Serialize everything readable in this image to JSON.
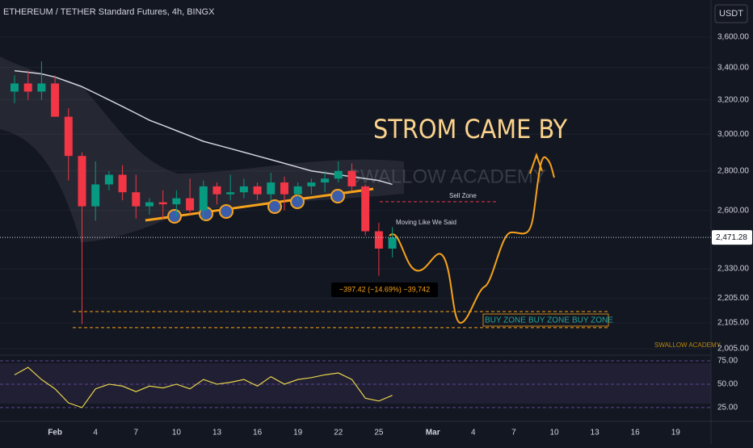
{
  "header": {
    "title": "ETHEREUM / TETHER Standard Futures, 4h, BINGX",
    "currency_button": "USDT"
  },
  "chart_data": {
    "type": "candlestick",
    "log_scale": true,
    "categories": [
      null,
      null,
      null,
      "Feb",
      null,
      null,
      "4",
      null,
      null,
      "7",
      null,
      null,
      "10",
      null,
      null,
      "13",
      null,
      null,
      "16",
      null,
      null,
      "19",
      null,
      null,
      "22",
      null,
      null,
      "25",
      null,
      null,
      null,
      "Mar",
      null,
      null,
      "4",
      null,
      null,
      "7",
      null,
      null,
      "10",
      null,
      null,
      "13",
      null,
      null,
      "16",
      null,
      null,
      "19",
      null,
      null
    ],
    "open": [
      3250,
      3300,
      3250,
      3300,
      3100,
      2880,
      2620,
      2730,
      2780,
      2690,
      2620,
      2640,
      2630,
      2660,
      2600,
      2720,
      2680,
      2690,
      2720,
      2680,
      2740,
      2680,
      2720,
      2740,
      2760,
      2800,
      2720,
      2500,
      2420,
      null,
      null,
      null,
      null,
      null,
      null,
      null,
      null,
      null,
      null,
      null,
      null,
      null,
      null,
      null,
      null,
      null,
      null,
      null,
      null,
      null,
      null,
      null
    ],
    "high": [
      3350,
      3380,
      3440,
      3350,
      3150,
      2900,
      2850,
      2800,
      2830,
      2780,
      2660,
      2700,
      2700,
      2760,
      2750,
      2740,
      2780,
      2760,
      2740,
      2790,
      2770,
      2740,
      2760,
      2800,
      2850,
      2840,
      2730,
      2540,
      2520,
      null,
      null,
      null,
      null,
      null,
      null,
      null,
      null,
      null,
      null,
      null,
      null,
      null,
      null,
      null,
      null,
      null,
      null,
      null,
      null,
      null,
      null,
      null
    ],
    "low": [
      3180,
      3200,
      3200,
      3100,
      2750,
      2100,
      2550,
      2700,
      2650,
      2560,
      2580,
      2560,
      2570,
      2580,
      2550,
      2630,
      2650,
      2660,
      2650,
      2650,
      2600,
      2640,
      2680,
      2690,
      2740,
      2700,
      2480,
      2300,
      2380,
      null,
      null,
      null,
      null,
      null,
      null,
      null,
      null,
      null,
      null,
      null,
      null,
      null,
      null,
      null,
      null,
      null,
      null,
      null,
      null,
      null,
      null,
      null
    ],
    "close": [
      3300,
      3250,
      3300,
      3100,
      2880,
      2620,
      2730,
      2780,
      2690,
      2620,
      2640,
      2630,
      2660,
      2600,
      2720,
      2680,
      2690,
      2720,
      2680,
      2740,
      2680,
      2720,
      2740,
      2760,
      2800,
      2720,
      2500,
      2420,
      2471.28,
      null,
      null,
      null,
      null,
      null,
      null,
      null,
      null,
      null,
      null,
      null,
      null,
      null,
      null,
      null,
      null,
      null,
      null,
      null,
      null,
      null,
      null,
      null
    ],
    "up_color": "#089981",
    "down_color": "#f23645",
    "ylim": [
      1981,
      3860
    ],
    "yticks": [
      {
        "value": 2005,
        "label": "2,005.00"
      },
      {
        "value": 2105,
        "label": "2,105.00"
      },
      {
        "value": 2205,
        "label": "2,205.00"
      },
      {
        "value": 2330,
        "label": "2,330.00"
      },
      {
        "value": 2600,
        "label": "2,600.00"
      },
      {
        "value": 2800,
        "label": "2,800.00"
      },
      {
        "value": 3000,
        "label": "3,000.00"
      },
      {
        "value": 3200,
        "label": "3,200.00"
      },
      {
        "value": 3400,
        "label": "3,400.00"
      },
      {
        "value": 3600,
        "label": "3,600.00"
      }
    ],
    "last_price": {
      "value": 2471.28,
      "label": "2,471.28"
    },
    "ma": {
      "color": "#d1d4dc",
      "values": [
        3380,
        3370,
        3360,
        3340,
        3310,
        3280,
        3240,
        3200,
        3160,
        3120,
        3080,
        3050,
        3020,
        2990,
        2960,
        2940,
        2920,
        2900,
        2880,
        2860,
        2840,
        2820,
        2800,
        2790,
        2780,
        2770,
        2760,
        2750,
        2730
      ]
    },
    "levels": {
      "sell_zone": 2643,
      "buy_zone_top": 2150,
      "buy_zone_bottom": 2086
    },
    "annotations": {
      "headline": "STROM CAME BY",
      "sell_zone": "Sell Zone",
      "moving": "Moving Like We Said",
      "measure": "−397.42 (−14.69%) −39,742",
      "buy_zones": [
        "BUY ZONE",
        "BUY ZONE",
        "BUY ZONE"
      ],
      "watermark": "SWALLOW ACADEMY",
      "watermark_small": "SWALLOW ACADEMY"
    }
  },
  "rsi_panel": {
    "color": "#e8d44d",
    "values": [
      60,
      68,
      55,
      45,
      30,
      25,
      45,
      50,
      48,
      42,
      48,
      46,
      50,
      45,
      55,
      50,
      52,
      55,
      48,
      58,
      50,
      55,
      57,
      60,
      62,
      55,
      35,
      32,
      38
    ],
    "ylim": [
      12,
      81
    ],
    "yticks": [
      {
        "value": 25,
        "label": "25.00"
      },
      {
        "value": 50,
        "label": "50.00"
      },
      {
        "value": 75,
        "label": "75.00"
      }
    ]
  }
}
